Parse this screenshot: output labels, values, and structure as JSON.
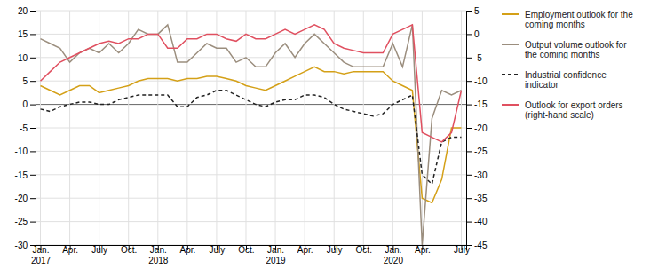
{
  "chart_data": {
    "type": "line",
    "categories": [
      "Jan.\n2017",
      null,
      null,
      "Apr.",
      null,
      null,
      "July",
      null,
      null,
      "Oct.",
      null,
      null,
      "Jan.\n2018",
      null,
      null,
      "Apr.",
      null,
      null,
      "July",
      null,
      null,
      "Oct.",
      null,
      null,
      "Jan.\n2019",
      null,
      null,
      "Apr.",
      null,
      null,
      "July",
      null,
      null,
      "Oct.",
      null,
      null,
      "Jan.\n2020",
      null,
      null,
      "Apr.",
      null,
      null,
      null,
      "July"
    ],
    "series": [
      {
        "name": "Employment outlook for the\ncoming months",
        "color": "#d4a017",
        "values": [
          4,
          3,
          2,
          3,
          4,
          4,
          2.5,
          3,
          3.5,
          4,
          5,
          5.5,
          5.5,
          5.5,
          5,
          5.5,
          5.5,
          6,
          6,
          5.5,
          5,
          4,
          3.5,
          3,
          4,
          5,
          6,
          7,
          8,
          7,
          7,
          6.5,
          7,
          7,
          7,
          7,
          5,
          4,
          3,
          -20,
          -21,
          -16,
          -5,
          -5
        ]
      },
      {
        "name": "Output volume outlook for\nthe coming months",
        "color": "#9b8e7e",
        "values": [
          14,
          13,
          12,
          9,
          11,
          12,
          11,
          13,
          11,
          13,
          16,
          15,
          15,
          17,
          9,
          9,
          11,
          13,
          12,
          12,
          9,
          10,
          8,
          8,
          11,
          13,
          10,
          13,
          15,
          13,
          11,
          9,
          8,
          8,
          8,
          8,
          13,
          8,
          17,
          -30,
          -3,
          3,
          2,
          3
        ]
      },
      {
        "name": "Industrial confidence\nindicator",
        "color": "#222222",
        "line_style": "dashed",
        "values": [
          -1,
          -1.5,
          -0.5,
          0,
          0.5,
          0.5,
          0,
          0,
          1,
          1.5,
          2,
          2,
          2,
          2,
          -0.5,
          -0.5,
          1.5,
          2,
          3,
          3,
          2,
          1,
          0,
          -0.5,
          0.5,
          1,
          1,
          2,
          2,
          1.5,
          0,
          -1,
          -1.5,
          -2,
          -2.5,
          -2,
          0,
          1,
          2,
          -15,
          -17,
          -8,
          -7,
          -7
        ]
      },
      {
        "name": "Outlook for export orders\n(right-hand scale)",
        "color": "#e05060",
        "axis": "y2",
        "values": [
          -10,
          -8,
          -6,
          -5,
          -4,
          -3,
          -2,
          -1.5,
          -2,
          -1,
          -1,
          0,
          0,
          -3,
          -3,
          -1,
          -1,
          0,
          0,
          -1,
          -1.5,
          0,
          -1,
          -1,
          0,
          1,
          0,
          1,
          2,
          1,
          -2,
          -3,
          -3.5,
          -4,
          -4,
          -4,
          0,
          1,
          2,
          -21,
          -22,
          -23,
          -21,
          -12
        ]
      }
    ],
    "ylim": [
      -30,
      20
    ],
    "yticks": [
      -30,
      -25,
      -20,
      -15,
      -10,
      -5,
      0,
      5,
      10,
      15,
      20
    ],
    "y2lim": [
      -45,
      5
    ],
    "y2ticks": [
      -45,
      -40,
      -35,
      -30,
      -25,
      -20,
      -15,
      -10,
      -5,
      0,
      5
    ],
    "grid": true,
    "legend": "right"
  }
}
